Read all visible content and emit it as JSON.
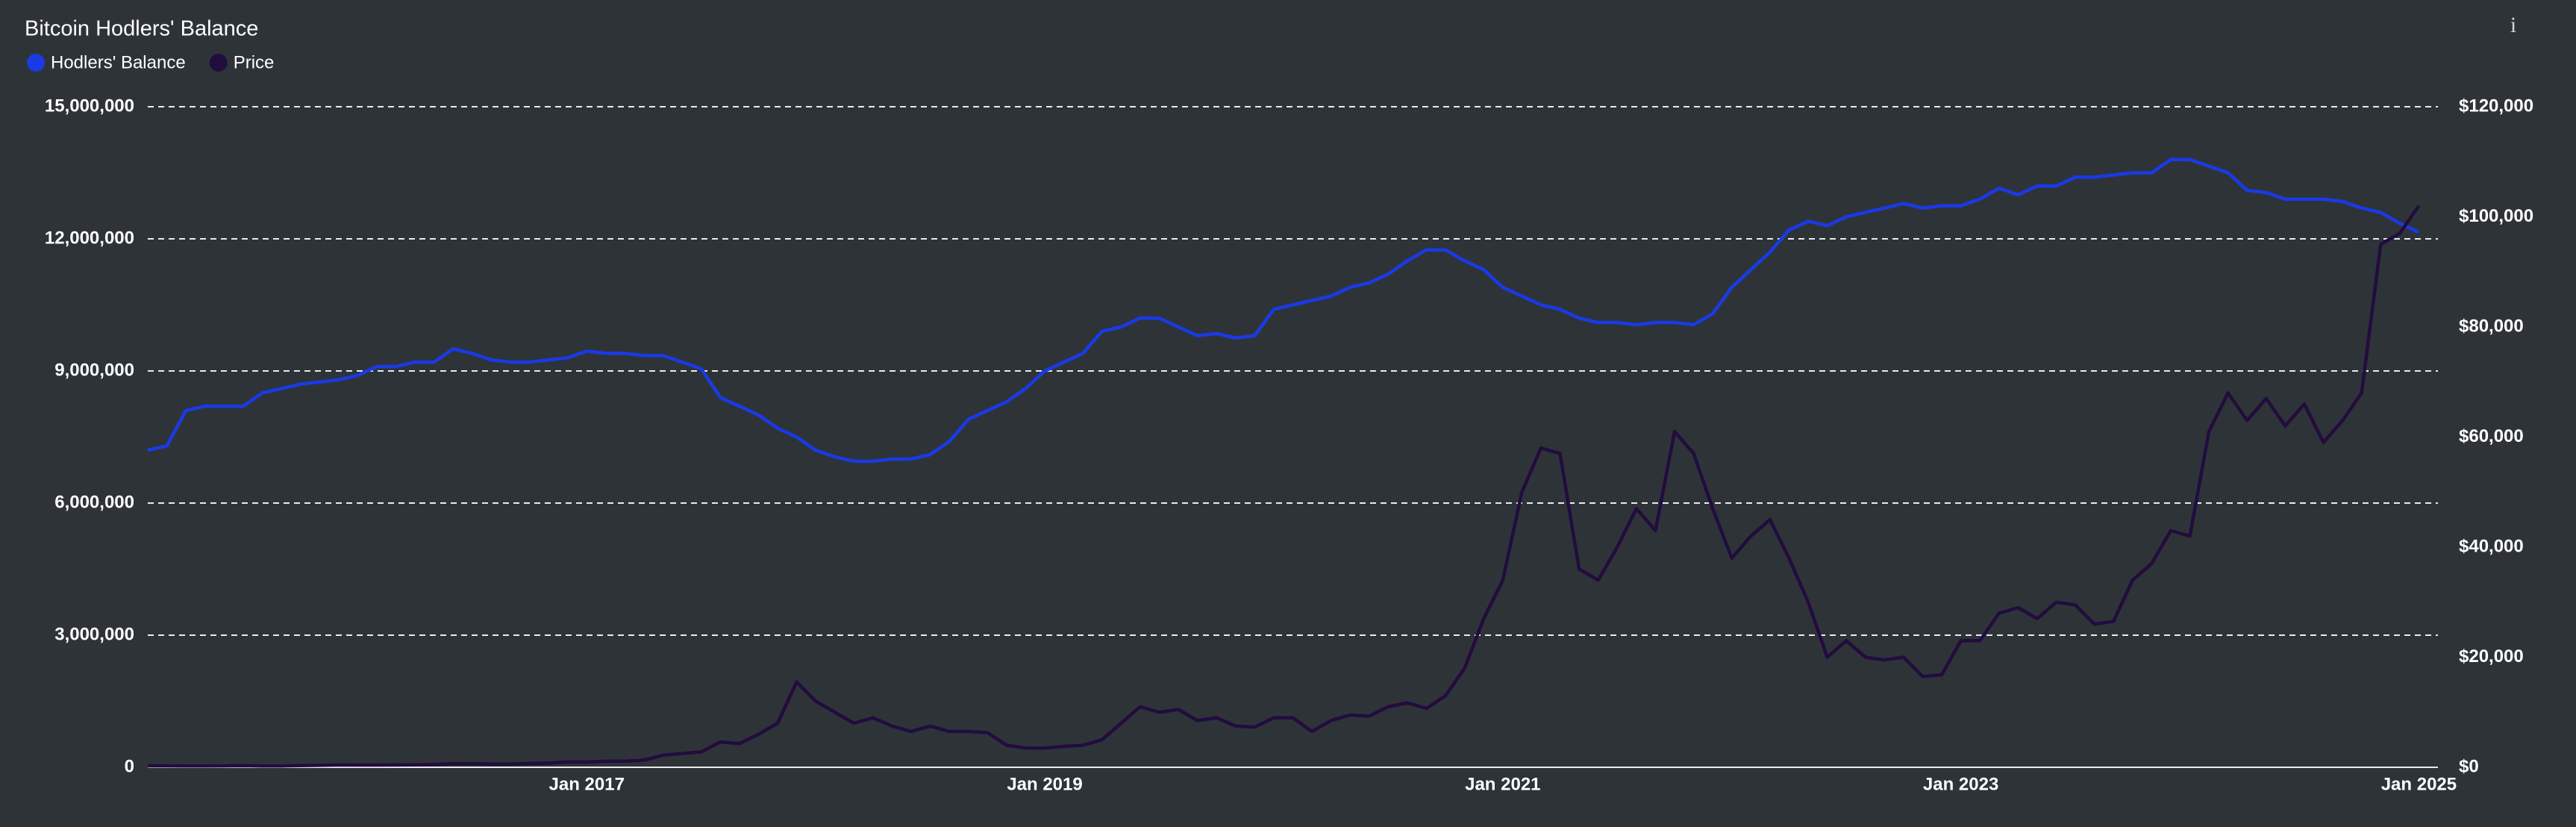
{
  "chart_data": {
    "type": "line",
    "title": "Bitcoin Hodlers' Balance",
    "info_icon": "i",
    "background": "#2e3338",
    "grid": true,
    "x": [
      "2015-02",
      "2015-03",
      "2015-04",
      "2015-05",
      "2015-06",
      "2015-07",
      "2015-08",
      "2015-09",
      "2015-10",
      "2015-11",
      "2015-12",
      "2016-01",
      "2016-02",
      "2016-03",
      "2016-04",
      "2016-05",
      "2016-06",
      "2016-07",
      "2016-08",
      "2016-09",
      "2016-10",
      "2016-11",
      "2016-12",
      "2017-01",
      "2017-02",
      "2017-03",
      "2017-04",
      "2017-05",
      "2017-06",
      "2017-07",
      "2017-08",
      "2017-09",
      "2017-10",
      "2017-11",
      "2017-12",
      "2018-01",
      "2018-02",
      "2018-03",
      "2018-04",
      "2018-05",
      "2018-06",
      "2018-07",
      "2018-08",
      "2018-09",
      "2018-10",
      "2018-11",
      "2018-12",
      "2019-01",
      "2019-02",
      "2019-03",
      "2019-04",
      "2019-05",
      "2019-06",
      "2019-07",
      "2019-08",
      "2019-09",
      "2019-10",
      "2019-11",
      "2019-12",
      "2020-01",
      "2020-02",
      "2020-03",
      "2020-04",
      "2020-05",
      "2020-06",
      "2020-07",
      "2020-08",
      "2020-09",
      "2020-10",
      "2020-11",
      "2020-12",
      "2021-01",
      "2021-02",
      "2021-03",
      "2021-04",
      "2021-05",
      "2021-06",
      "2021-07",
      "2021-08",
      "2021-09",
      "2021-10",
      "2021-11",
      "2021-12",
      "2022-01",
      "2022-02",
      "2022-03",
      "2022-04",
      "2022-05",
      "2022-06",
      "2022-07",
      "2022-08",
      "2022-09",
      "2022-10",
      "2022-11",
      "2022-12",
      "2023-01",
      "2023-02",
      "2023-03",
      "2023-04",
      "2023-05",
      "2023-06",
      "2023-07",
      "2023-08",
      "2023-09",
      "2023-10",
      "2023-11",
      "2023-12",
      "2024-01",
      "2024-02",
      "2024-03",
      "2024-04",
      "2024-05",
      "2024-06",
      "2024-07",
      "2024-08",
      "2024-09",
      "2024-10",
      "2024-11",
      "2024-12",
      "2025-01"
    ],
    "xlim": [
      "2015-02",
      "2025-02"
    ],
    "xticks": [
      {
        "value": "2017-01",
        "label": "Jan 2017"
      },
      {
        "value": "2019-01",
        "label": "Jan 2019"
      },
      {
        "value": "2021-01",
        "label": "Jan 2021"
      },
      {
        "value": "2023-01",
        "label": "Jan 2023"
      },
      {
        "value": "2025-01",
        "label": "Jan 2025"
      }
    ],
    "ylim": [
      0,
      15000000
    ],
    "yticks": [
      0,
      {
        "value": 3000000,
        "label": "3,000,000"
      },
      {
        "value": 6000000,
        "label": "6,000,000"
      },
      {
        "value": 9000000,
        "label": "9,000,000"
      },
      {
        "value": 12000000,
        "label": "12,000,000"
      },
      {
        "value": 15000000,
        "label": "15,000,000"
      }
    ],
    "y2lim": [
      0,
      120000
    ],
    "y2ticks": [
      {
        "value": 0,
        "label": "$0"
      },
      {
        "value": 20000,
        "label": "$20,000"
      },
      {
        "value": 40000,
        "label": "$40,000"
      },
      {
        "value": 60000,
        "label": "$60,000"
      },
      {
        "value": 80000,
        "label": "$80,000"
      },
      {
        "value": 100000,
        "label": "$100,000"
      },
      {
        "value": 120000,
        "label": "$120,000"
      }
    ],
    "series": [
      {
        "name": "Hodlers' Balance",
        "color": "#1a3ae6",
        "values": [
          7200000,
          7300000,
          8100000,
          8200000,
          8200000,
          8200000,
          8500000,
          8600000,
          8700000,
          8750000,
          8800000,
          8900000,
          9100000,
          9100000,
          9200000,
          9200000,
          9500000,
          9400000,
          9250000,
          9200000,
          9200000,
          9250000,
          9300000,
          9450000,
          9400000,
          9400000,
          9350000,
          9350000,
          9200000,
          9050000,
          8400000,
          8200000,
          8000000,
          7700000,
          7500000,
          7200000,
          7050000,
          6950000,
          6950000,
          7000000,
          7000000,
          7100000,
          7400000,
          7900000,
          8100000,
          8300000,
          8600000,
          9000000,
          9200000,
          9400000,
          9900000,
          10000000,
          10200000,
          10200000,
          10000000,
          9800000,
          9850000,
          9750000,
          9800000,
          10400000,
          10500000,
          10600000,
          10700000,
          10900000,
          11000000,
          11200000,
          11500000,
          11750000,
          11750000,
          11500000,
          11300000,
          10900000,
          10700000,
          10500000,
          10400000,
          10200000,
          10100000,
          10100000,
          10050000,
          10100000,
          10100000,
          10050000,
          10300000,
          10900000,
          11300000,
          11700000,
          12200000,
          12400000,
          12300000,
          12500000,
          12600000,
          12700000,
          12800000,
          12700000,
          12750000,
          12750000,
          12900000,
          13150000,
          13000000,
          13200000,
          13200000,
          13400000,
          13400000,
          13450000,
          13500000,
          13500000,
          13800000,
          13800000,
          13650000,
          13500000,
          13100000,
          13050000,
          12900000,
          12900000,
          12900000,
          12850000,
          12700000,
          12600000,
          12350000,
          12150000
        ]
      },
      {
        "name": "Price",
        "color": "#220c3e",
        "axis": "y2",
        "values": [
          250,
          250,
          230,
          240,
          250,
          280,
          230,
          240,
          300,
          350,
          430,
          400,
          400,
          420,
          440,
          500,
          650,
          650,
          580,
          600,
          700,
          740,
          960,
          950,
          1100,
          1100,
          1300,
          2200,
          2500,
          2800,
          4600,
          4300,
          6000,
          8000,
          15500,
          12000,
          10000,
          8000,
          9000,
          7500,
          6500,
          7500,
          6500,
          6500,
          6300,
          4000,
          3500,
          3500,
          3800,
          4000,
          5000,
          8000,
          11000,
          10000,
          10500,
          8500,
          9000,
          7500,
          7300,
          9000,
          9000,
          6500,
          8500,
          9500,
          9300,
          11000,
          11700,
          10700,
          13000,
          18000,
          27000,
          34000,
          50000,
          58000,
          57000,
          36000,
          34000,
          40000,
          47000,
          43000,
          61000,
          57000,
          47000,
          38000,
          42000,
          45000,
          38000,
          30000,
          20000,
          23000,
          20000,
          19500,
          20000,
          16500,
          16800,
          23000,
          23000,
          28000,
          29000,
          27000,
          30000,
          29500,
          26000,
          26500,
          34000,
          37000,
          43000,
          42000,
          61000,
          68000,
          63000,
          67000,
          62000,
          66000,
          59000,
          63000,
          68000,
          95000,
          97000,
          102000
        ]
      }
    ]
  }
}
